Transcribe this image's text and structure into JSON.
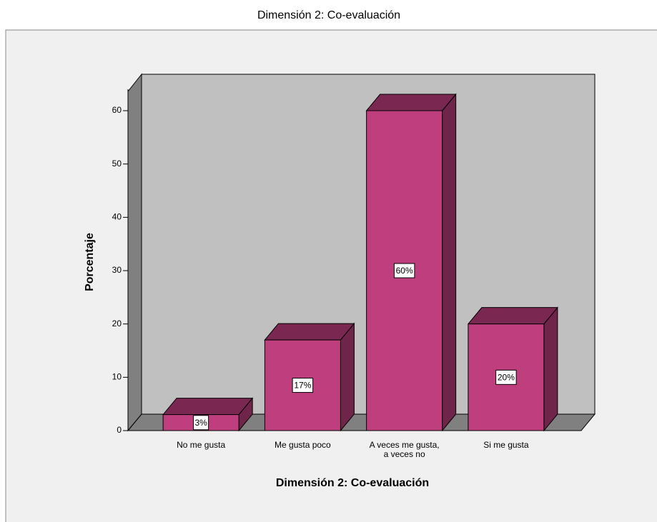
{
  "chart_data": {
    "type": "bar3d",
    "title": "Dimensión 2: Co-evaluación",
    "xlabel": "Dimensión 2: Co-evaluación",
    "ylabel": "Porcentaje",
    "categories": [
      "No me gusta",
      "Me gusta poco",
      "A veces me gusta,\na veces no",
      "Si me gusta"
    ],
    "values": [
      3,
      17,
      60,
      20
    ],
    "value_labels": [
      "3%",
      "17%",
      "60%",
      "20%"
    ],
    "color": "#bf3f7e",
    "ylim": [
      0,
      64
    ],
    "yticks": [
      0,
      10,
      20,
      30,
      40,
      50,
      60
    ]
  }
}
